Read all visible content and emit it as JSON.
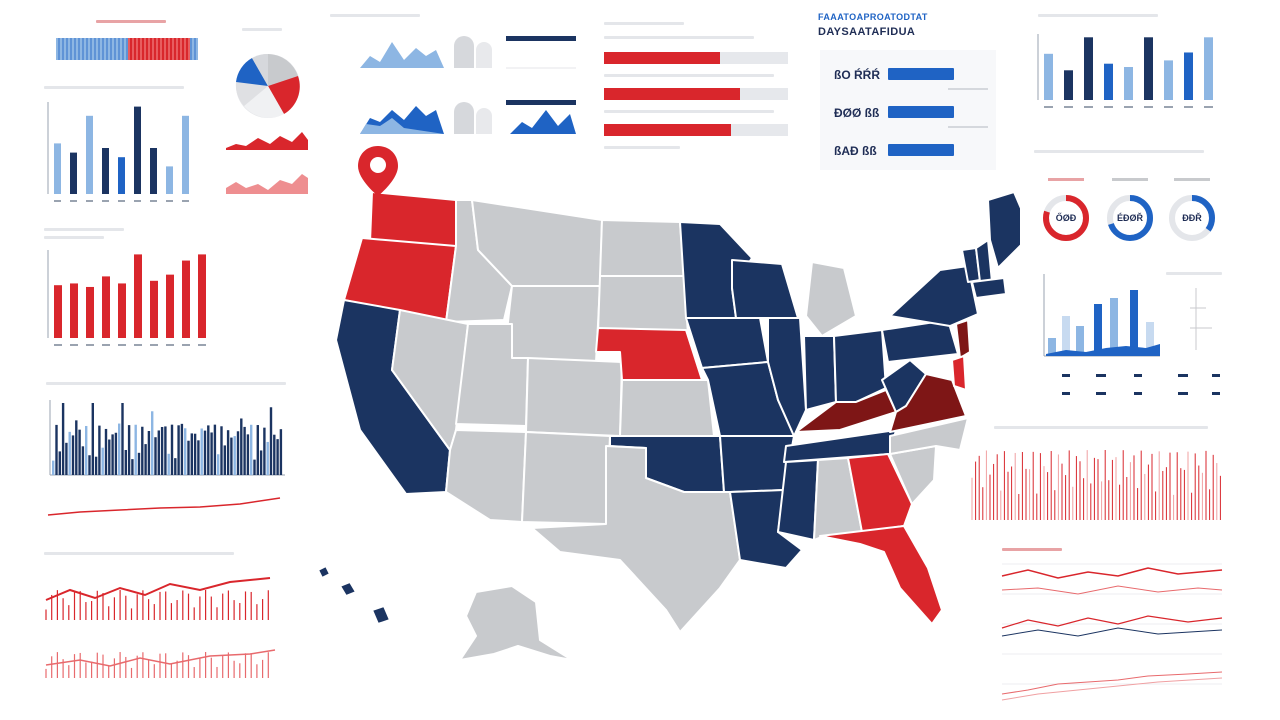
{
  "colors": {
    "navy": "#1b3461",
    "blue": "#1f63c4",
    "light_blue": "#8db6e3",
    "red": "#d9262c",
    "dark_red": "#7e1616",
    "gray": "#c8cacd",
    "pin": "#d9262c"
  },
  "map": {
    "pin_icon": "map-pin-icon",
    "state_groups": {
      "red": [
        "Washington",
        "Oregon",
        "Nebraska",
        "Georgia",
        "Florida",
        "Delaware"
      ],
      "dark_red": [
        "Kentucky",
        "Virginia",
        "New Jersey"
      ],
      "navy": [
        "California",
        "Minnesota",
        "Iowa",
        "Wisconsin",
        "Illinois",
        "Missouri",
        "Arkansas",
        "Louisiana",
        "Mississippi",
        "Oklahoma",
        "Indiana",
        "Ohio",
        "Pennsylvania",
        "New York",
        "Maine",
        "Vermont",
        "New Hampshire",
        "Massachusetts",
        "Tennessee",
        "West Virginia",
        "Hawaii"
      ],
      "gray": [
        "Idaho",
        "Montana",
        "Wyoming",
        "Nevada",
        "Utah",
        "Colorado",
        "Arizona",
        "New Mexico",
        "Texas",
        "North Dakota",
        "South Dakota",
        "Kansas",
        "Michigan",
        "Alabama",
        "South Carolina",
        "North Carolina",
        "Alaska"
      ]
    }
  },
  "stat_card": {
    "title": "FAAATOAPROATODTAT",
    "subtitle": "DAYSAATAFIDUA",
    "rows": [
      {
        "label": "ßO ŔŔŔ"
      },
      {
        "label": "ÐØØ ßß"
      },
      {
        "label": "ßAÐ ßß"
      }
    ]
  },
  "donuts": [
    {
      "label": "ŐØÐ",
      "color": "#d9262c",
      "fraction": 0.8
    },
    {
      "label": "ÉÐØŘ",
      "color": "#1f63c4",
      "fraction": 0.7
    },
    {
      "label": "ÐÐŘ",
      "color": "#1f63c4",
      "fraction": 0.35
    }
  ],
  "hbars": [
    {
      "fraction": 0.63
    },
    {
      "fraction": 0.74
    },
    {
      "fraction": 0.69
    }
  ],
  "left_bars_blue": [
    0.55,
    0.45,
    0.85,
    0.5,
    0.4,
    0.95,
    0.5,
    0.3,
    0.85
  ],
  "left_bars_red": [
    0.6,
    0.62,
    0.58,
    0.7,
    0.62,
    0.95,
    0.65,
    0.72,
    0.88,
    0.95
  ],
  "right_bars_blue": [
    0.7,
    0.45,
    0.95,
    0.55,
    0.5,
    0.95,
    0.6,
    0.72,
    0.95
  ]
}
